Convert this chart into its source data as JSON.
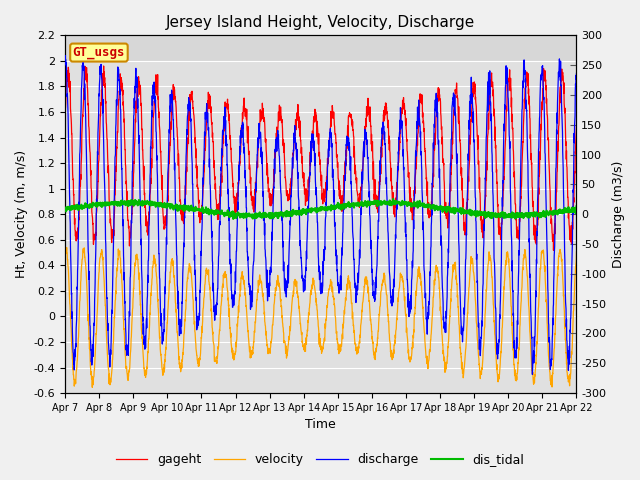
{
  "title": "Jersey Island Height, Velocity, Discharge",
  "xlabel": "Time",
  "ylabel_left": "Ht, Velocity (m, m/s)",
  "ylabel_right": "Discharge (m3/s)",
  "ylim_left": [
    -0.6,
    2.2
  ],
  "ylim_right": [
    -300,
    300
  ],
  "yticks_left": [
    -0.6,
    -0.4,
    -0.2,
    0.0,
    0.2,
    0.4,
    0.6,
    0.8,
    1.0,
    1.2,
    1.4,
    1.6,
    1.8,
    2.0,
    2.2
  ],
  "yticks_right": [
    -300,
    -250,
    -200,
    -150,
    -100,
    -50,
    0,
    50,
    100,
    150,
    200,
    250,
    300
  ],
  "xtick_labels": [
    "Apr 7",
    "Apr 8",
    "Apr 9",
    "Apr 10",
    "Apr 11",
    "Apr 12",
    "Apr 13",
    "Apr 14",
    "Apr 15",
    "Apr 16",
    "Apr 17",
    "Apr 18",
    "Apr 19",
    "Apr 20",
    "Apr 21",
    "Apr 22"
  ],
  "legend_labels": [
    "gageht",
    "velocity",
    "discharge",
    "dis_tidal"
  ],
  "watermark_text": "GT_usgs",
  "watermark_fgcolor": "#cc0000",
  "watermark_bgcolor": "#ffff99",
  "watermark_edgecolor": "#cc8800",
  "gageht_color": "#ff0000",
  "velocity_color": "#ffa500",
  "discharge_color": "#0000ff",
  "dis_tidal_color": "#00bb00",
  "plot_bg_color": "#e0e0e0",
  "fig_bg_color": "#f0f0f0",
  "n_days": 15,
  "tidal_period_hours": 12.42,
  "samples_per_hour": 6,
  "grid_color": "#ffffff",
  "grid_lw": 0.8
}
